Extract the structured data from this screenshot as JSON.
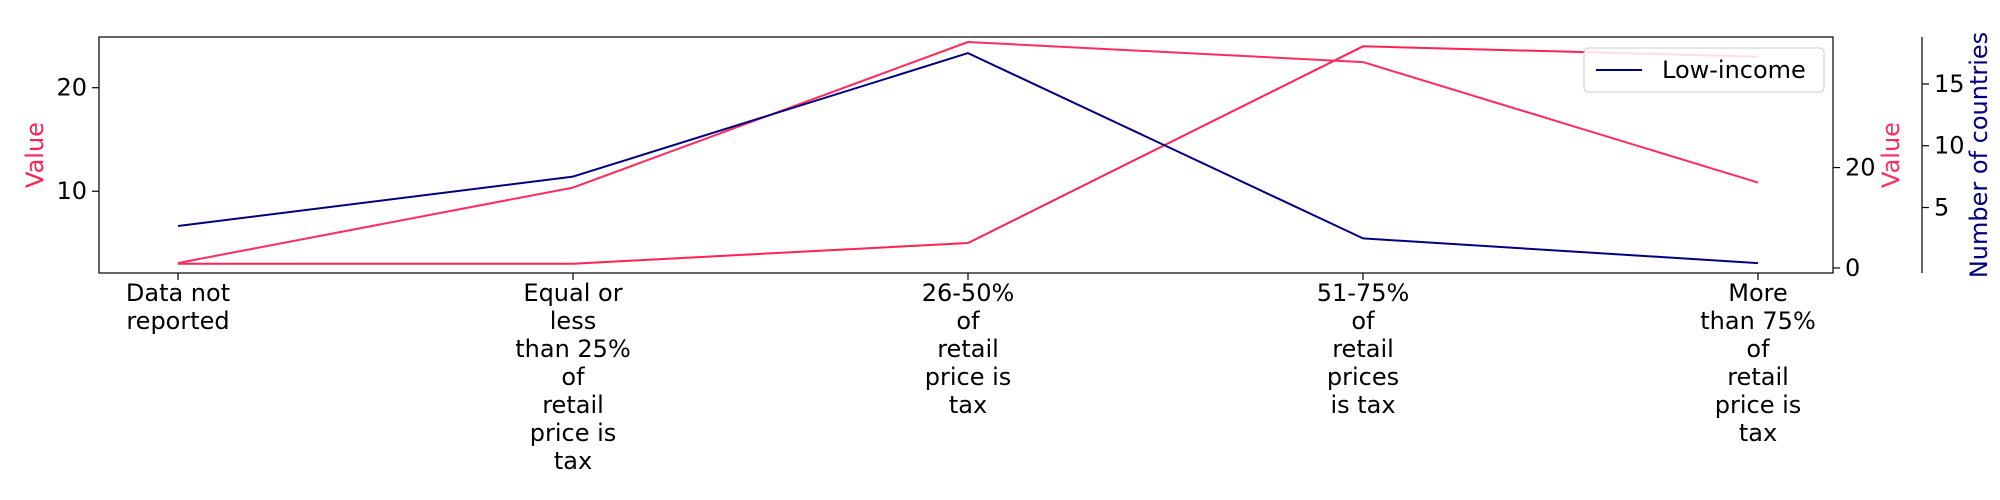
{
  "colors": {
    "series_red": "#ff2252",
    "series_pink": "#ff2c5f",
    "series_navy": "#000080",
    "axis": "#000000"
  },
  "chart_data": {
    "type": "line",
    "categories": [
      [
        "Data not",
        "reported"
      ],
      [
        "Equal or",
        "less",
        "than 25%",
        "of",
        "retail",
        "price is",
        "tax"
      ],
      [
        "26-50%",
        "of",
        "retail",
        "price is",
        "tax"
      ],
      [
        "51-75%",
        "of",
        "retail",
        "prices",
        "is tax"
      ],
      [
        "More",
        "than 75%",
        "of",
        "retail",
        "price is",
        "tax"
      ]
    ],
    "axes": {
      "left": {
        "label": "Value",
        "ylim": [
          2.1,
          24.9
        ],
        "ticks": [
          10,
          20
        ]
      },
      "right_inner": {
        "label": "Value",
        "ylim": [
          -1.0,
          46.0
        ],
        "ticks": [
          0,
          20
        ]
      },
      "right_outer": {
        "label": "Number of countries",
        "ylim": [
          -0.3,
          18.8
        ],
        "ticks": [
          5,
          10,
          15
        ]
      }
    },
    "series": [
      {
        "axis": "left",
        "color": "series_red",
        "values": [
          3.0,
          3.0,
          5.0,
          24.0,
          23.0
        ]
      },
      {
        "axis": "right_inner",
        "color": "series_pink",
        "values": [
          1.0,
          16.0,
          45.0,
          41.0,
          17.0
        ]
      },
      {
        "axis": "right_outer",
        "name": "Low-income",
        "color": "series_navy",
        "values": [
          3.5,
          7.5,
          17.5,
          2.5,
          0.5
        ]
      }
    ],
    "legend": {
      "position": "top-right",
      "entries": [
        "Low-income"
      ]
    },
    "grid": false
  }
}
